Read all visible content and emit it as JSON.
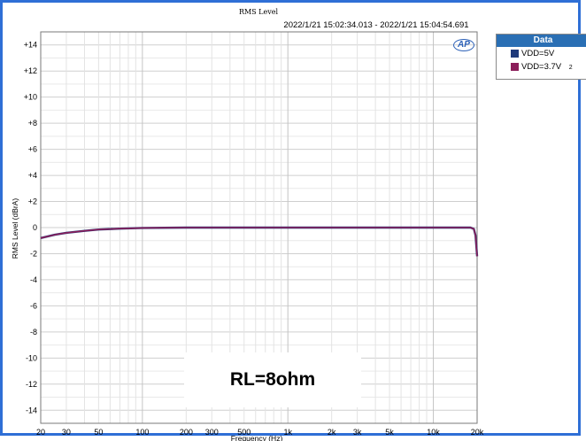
{
  "header": {
    "title": "RMS Level",
    "time_range": "2022/1/21 15:02:34.013 - 2022/1/21 15:04:54.691"
  },
  "legend": {
    "title": "Data",
    "items": [
      {
        "label": "VDD=5V",
        "color": "#1f3a7a",
        "tag": ""
      },
      {
        "label": "VDD=3.7V",
        "color": "#8b1e5a",
        "tag": "2"
      }
    ]
  },
  "annotation": "RL=8ohm",
  "logo": "AP",
  "chart_data": {
    "type": "line",
    "title": "RMS Level",
    "subtitle": "2022/1/21 15:02:34.013 - 2022/1/21 15:04:54.691",
    "xlabel": "Frequency (Hz)",
    "ylabel": "RMS Level (dBrA)",
    "xscale": "log",
    "xlim": [
      20,
      20000
    ],
    "ylim": [
      -15,
      15
    ],
    "x_ticks": [
      20,
      30,
      50,
      100,
      200,
      300,
      500,
      1000,
      2000,
      3000,
      5000,
      10000,
      20000
    ],
    "x_tick_labels": [
      "20",
      "30",
      "50",
      "100",
      "200",
      "300",
      "500",
      "1k",
      "2k",
      "3k",
      "5k",
      "10k",
      "20k"
    ],
    "y_ticks": [
      14,
      12,
      10,
      8,
      6,
      4,
      2,
      0,
      -2,
      -4,
      -6,
      -8,
      -10,
      -12,
      -14
    ],
    "y_tick_labels": [
      "+14",
      "+12",
      "+10",
      "+8",
      "+6",
      "+4",
      "+2",
      "0",
      "-2",
      "-4",
      "-6",
      "-8",
      "-10",
      "-12",
      "-14"
    ],
    "grid": true,
    "legend_position": "top-right outside",
    "series": [
      {
        "name": "VDD=5V",
        "color": "#1f3a7a",
        "x": [
          20,
          25,
          30,
          40,
          50,
          70,
          100,
          200,
          500,
          1000,
          5000,
          10000,
          15000,
          18000,
          19000,
          19500,
          20000
        ],
        "values": [
          -0.8,
          -0.55,
          -0.4,
          -0.25,
          -0.15,
          -0.08,
          -0.03,
          0.0,
          0.0,
          0.0,
          0.0,
          0.0,
          0.0,
          0.0,
          -0.1,
          -0.6,
          -2.2
        ]
      },
      {
        "name": "VDD=3.7V",
        "color": "#8b1e5a",
        "x": [
          20,
          25,
          30,
          40,
          50,
          70,
          100,
          200,
          500,
          1000,
          5000,
          10000,
          15000,
          18000,
          19000,
          19500,
          20000
        ],
        "values": [
          -0.8,
          -0.55,
          -0.4,
          -0.25,
          -0.15,
          -0.08,
          -0.03,
          0.0,
          0.0,
          0.0,
          0.0,
          0.0,
          0.0,
          0.0,
          -0.1,
          -0.6,
          -2.2
        ]
      }
    ]
  }
}
